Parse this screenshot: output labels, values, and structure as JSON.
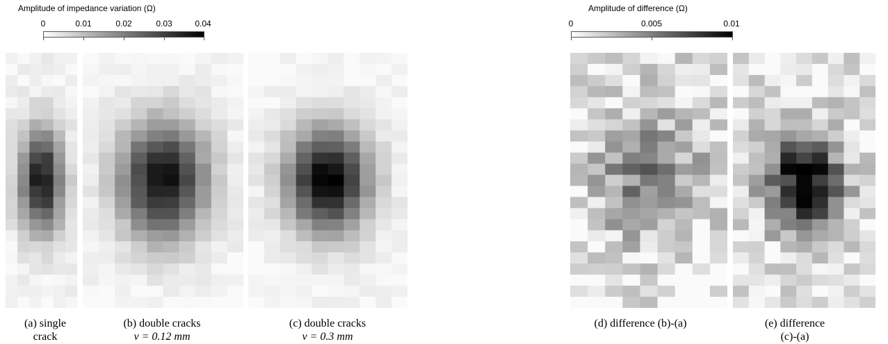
{
  "colorbars": [
    {
      "title": "Amplitude of impedance variation (Ω)",
      "ticks": [
        "0",
        "0.01",
        "0.02",
        "0.03",
        "0.04"
      ],
      "range": [
        0,
        0.04
      ]
    },
    {
      "title": "Amplitude of difference (Ω)",
      "ticks": [
        "0",
        "0.005",
        "0.01"
      ],
      "range": [
        0,
        0.01
      ]
    }
  ],
  "captions": [
    {
      "line1": "(a) single",
      "line2": "crack"
    },
    {
      "line1": "(b) double cracks",
      "line2": "v = 0.12 mm"
    },
    {
      "line1": "(c) double cracks",
      "line2": "v = 0.3 mm"
    },
    {
      "line1": "(d) difference (b)-(a)",
      "line2": ""
    },
    {
      "line1": "(e) difference",
      "line2": "(c)-(a)"
    }
  ],
  "colors": {
    "low": "#ffffff",
    "high": "#000000"
  },
  "chart_data": [
    {
      "type": "heatmap",
      "panel": "a",
      "colorbar": 0,
      "rows": 23,
      "cols": 6,
      "peak_value": 0.036,
      "spread_x": 0.45,
      "spread_y": 0.3,
      "noise": 0.002
    },
    {
      "type": "heatmap",
      "panel": "b",
      "colorbar": 0,
      "rows": 23,
      "cols": 10,
      "peak_value": 0.037,
      "spread_x": 0.4,
      "spread_y": 0.34,
      "noise": 0.0015
    },
    {
      "type": "heatmap",
      "panel": "c",
      "colorbar": 0,
      "rows": 23,
      "cols": 10,
      "peak_value": 0.04,
      "spread_x": 0.38,
      "spread_y": 0.3,
      "noise": 0.0015
    },
    {
      "type": "heatmap",
      "panel": "d",
      "colorbar": 1,
      "rows": 23,
      "cols": 9,
      "peak_value": 0.0045,
      "spread_x": 0.5,
      "spread_y": 0.35,
      "noise": 0.002
    },
    {
      "type": "heatmap",
      "panel": "e",
      "colorbar": 1,
      "rows": 23,
      "cols": 9,
      "peak_value": 0.009,
      "spread_x": 0.4,
      "spread_y": 0.3,
      "noise": 0.0018
    }
  ]
}
